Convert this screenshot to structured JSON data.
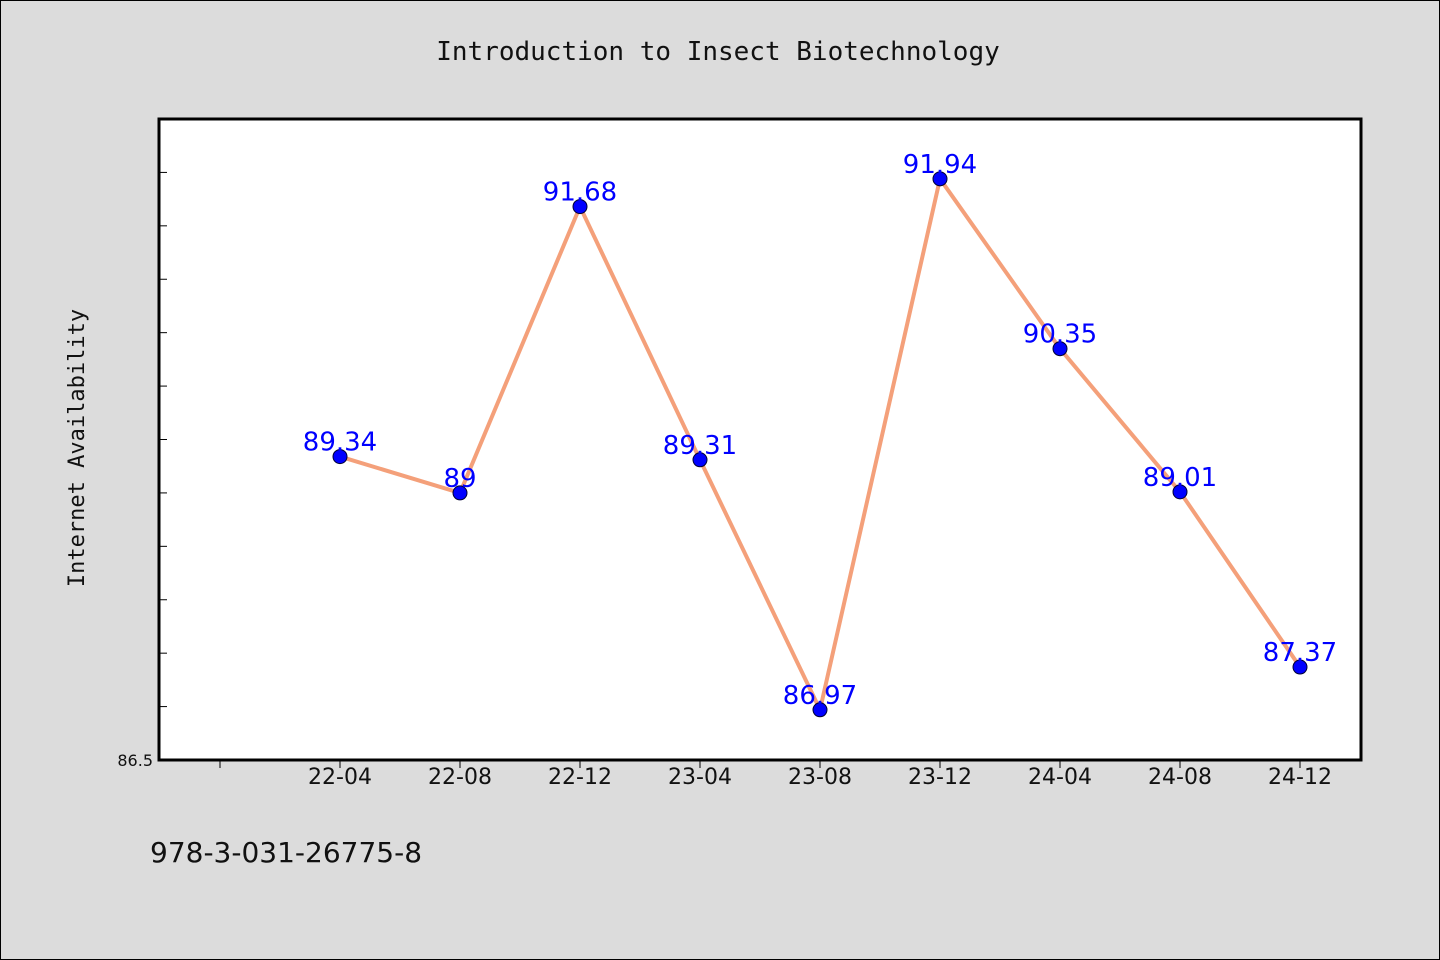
{
  "chart_data": {
    "type": "line",
    "title": "Introduction to Insect Biotechnology",
    "xlabel": "",
    "ylabel": "Internet Availability",
    "categories": [
      "22-04",
      "22-08",
      "22-12",
      "23-04",
      "23-08",
      "23-12",
      "24-04",
      "24-08",
      "24-12"
    ],
    "series": [
      {
        "values": [
          89.34,
          89.0,
          91.68,
          89.31,
          86.97,
          91.94,
          90.35,
          89.01,
          87.37
        ],
        "labels": [
          "89.34",
          "89",
          "91.68",
          "89.31",
          "86.97",
          "91.94",
          "90.35",
          "89.01",
          "87.37"
        ],
        "line_color": "#f4a07a",
        "marker_color": "#0000ff"
      }
    ],
    "y_tick_labels": [
      {
        "value": 86.5,
        "label": "86.5"
      }
    ],
    "ylim": [
      86.5,
      92.5
    ],
    "grid": false,
    "legend": "none"
  },
  "footer": {
    "isbn": "978-3-031-26775-8"
  }
}
